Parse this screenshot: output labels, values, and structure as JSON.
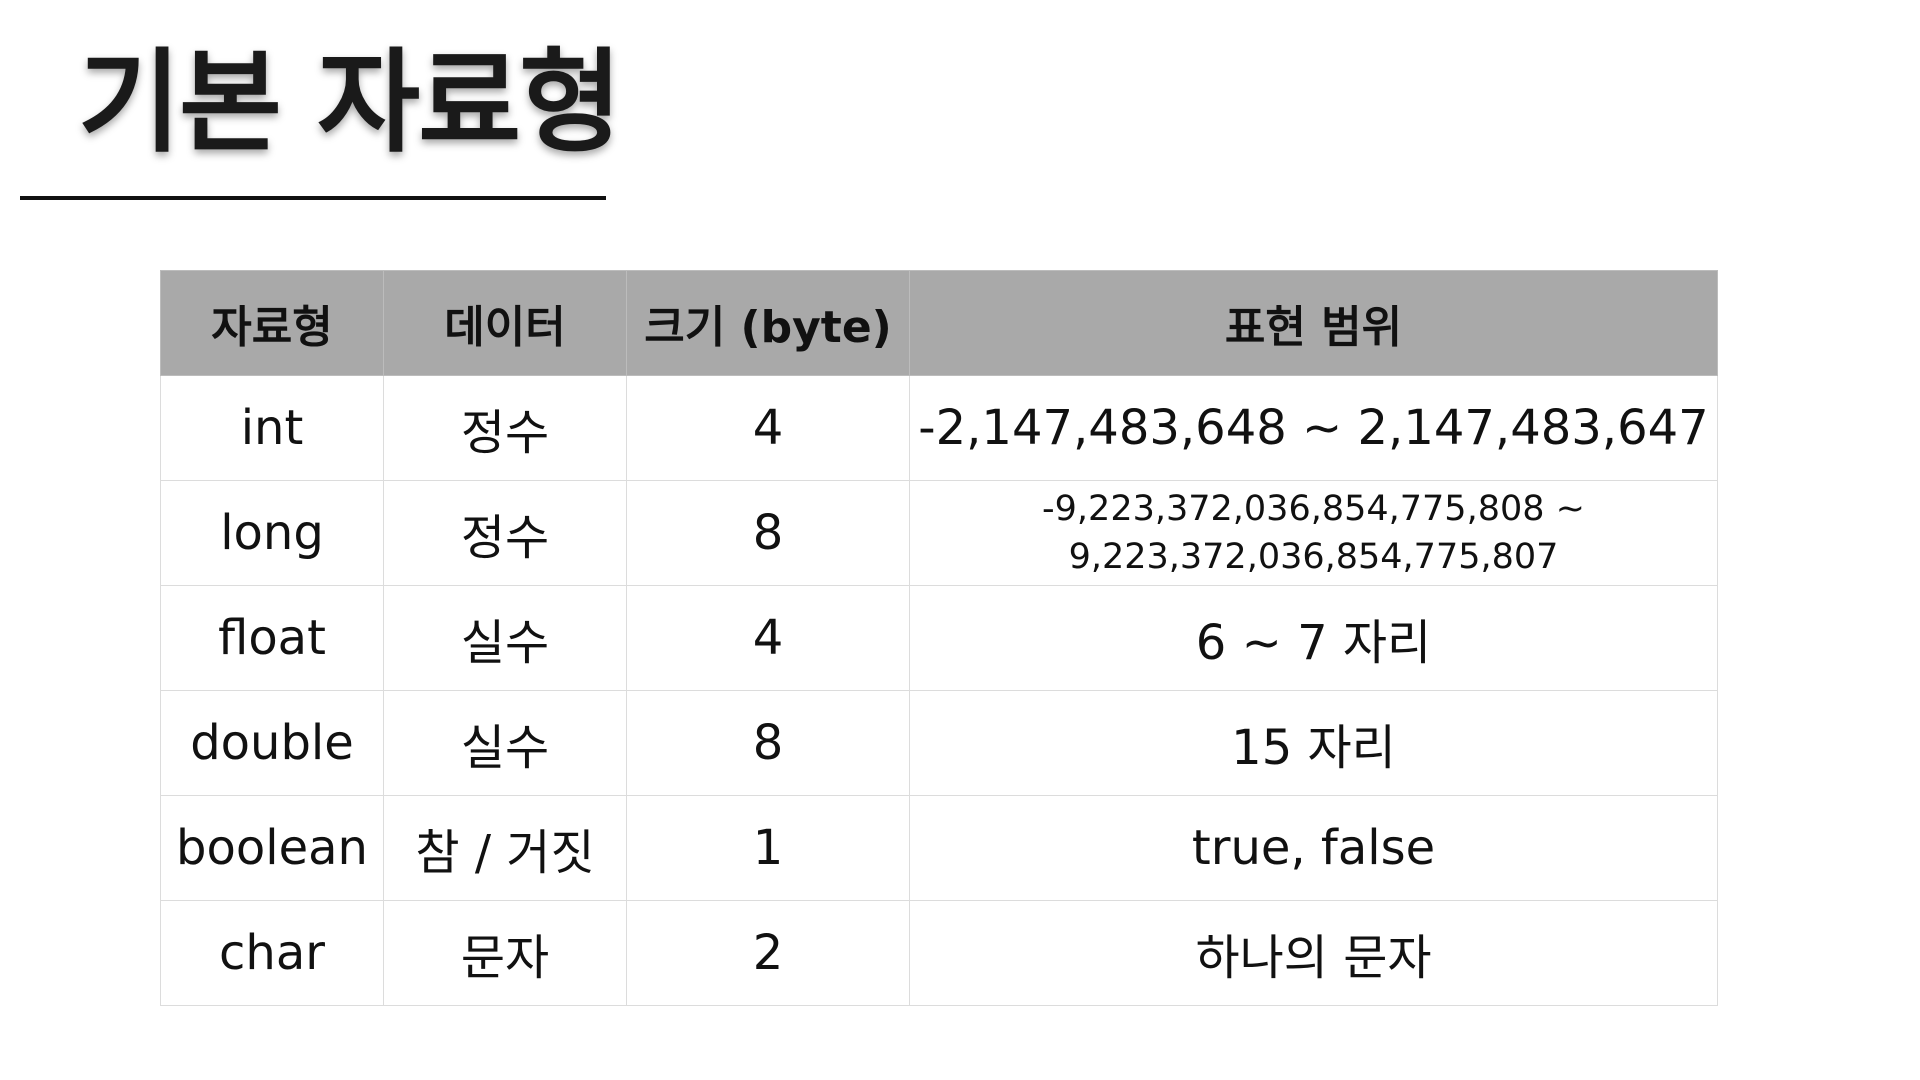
{
  "title": "기본 자료형",
  "table": {
    "headers": [
      "자료형",
      "데이터",
      "크기 (byte)",
      "표현 범위"
    ],
    "rows": [
      {
        "type": "int",
        "data": "정수",
        "size": "4",
        "range": "-2,147,483,648 ~ 2,147,483,647"
      },
      {
        "type": "long",
        "data": "정수",
        "size": "8",
        "range_line1": "-9,223,372,036,854,775,808 ~",
        "range_line2": "9,223,372,036,854,775,807"
      },
      {
        "type": "float",
        "data": "실수",
        "size": "4",
        "range": "6 ~ 7 자리"
      },
      {
        "type": "double",
        "data": "실수",
        "size": "8",
        "range": "15 자리"
      },
      {
        "type": "boolean",
        "data": "참 / 거짓",
        "size": "1",
        "range": "true, false"
      },
      {
        "type": "char",
        "data": "문자",
        "size": "2",
        "range": "하나의 문자"
      }
    ]
  }
}
